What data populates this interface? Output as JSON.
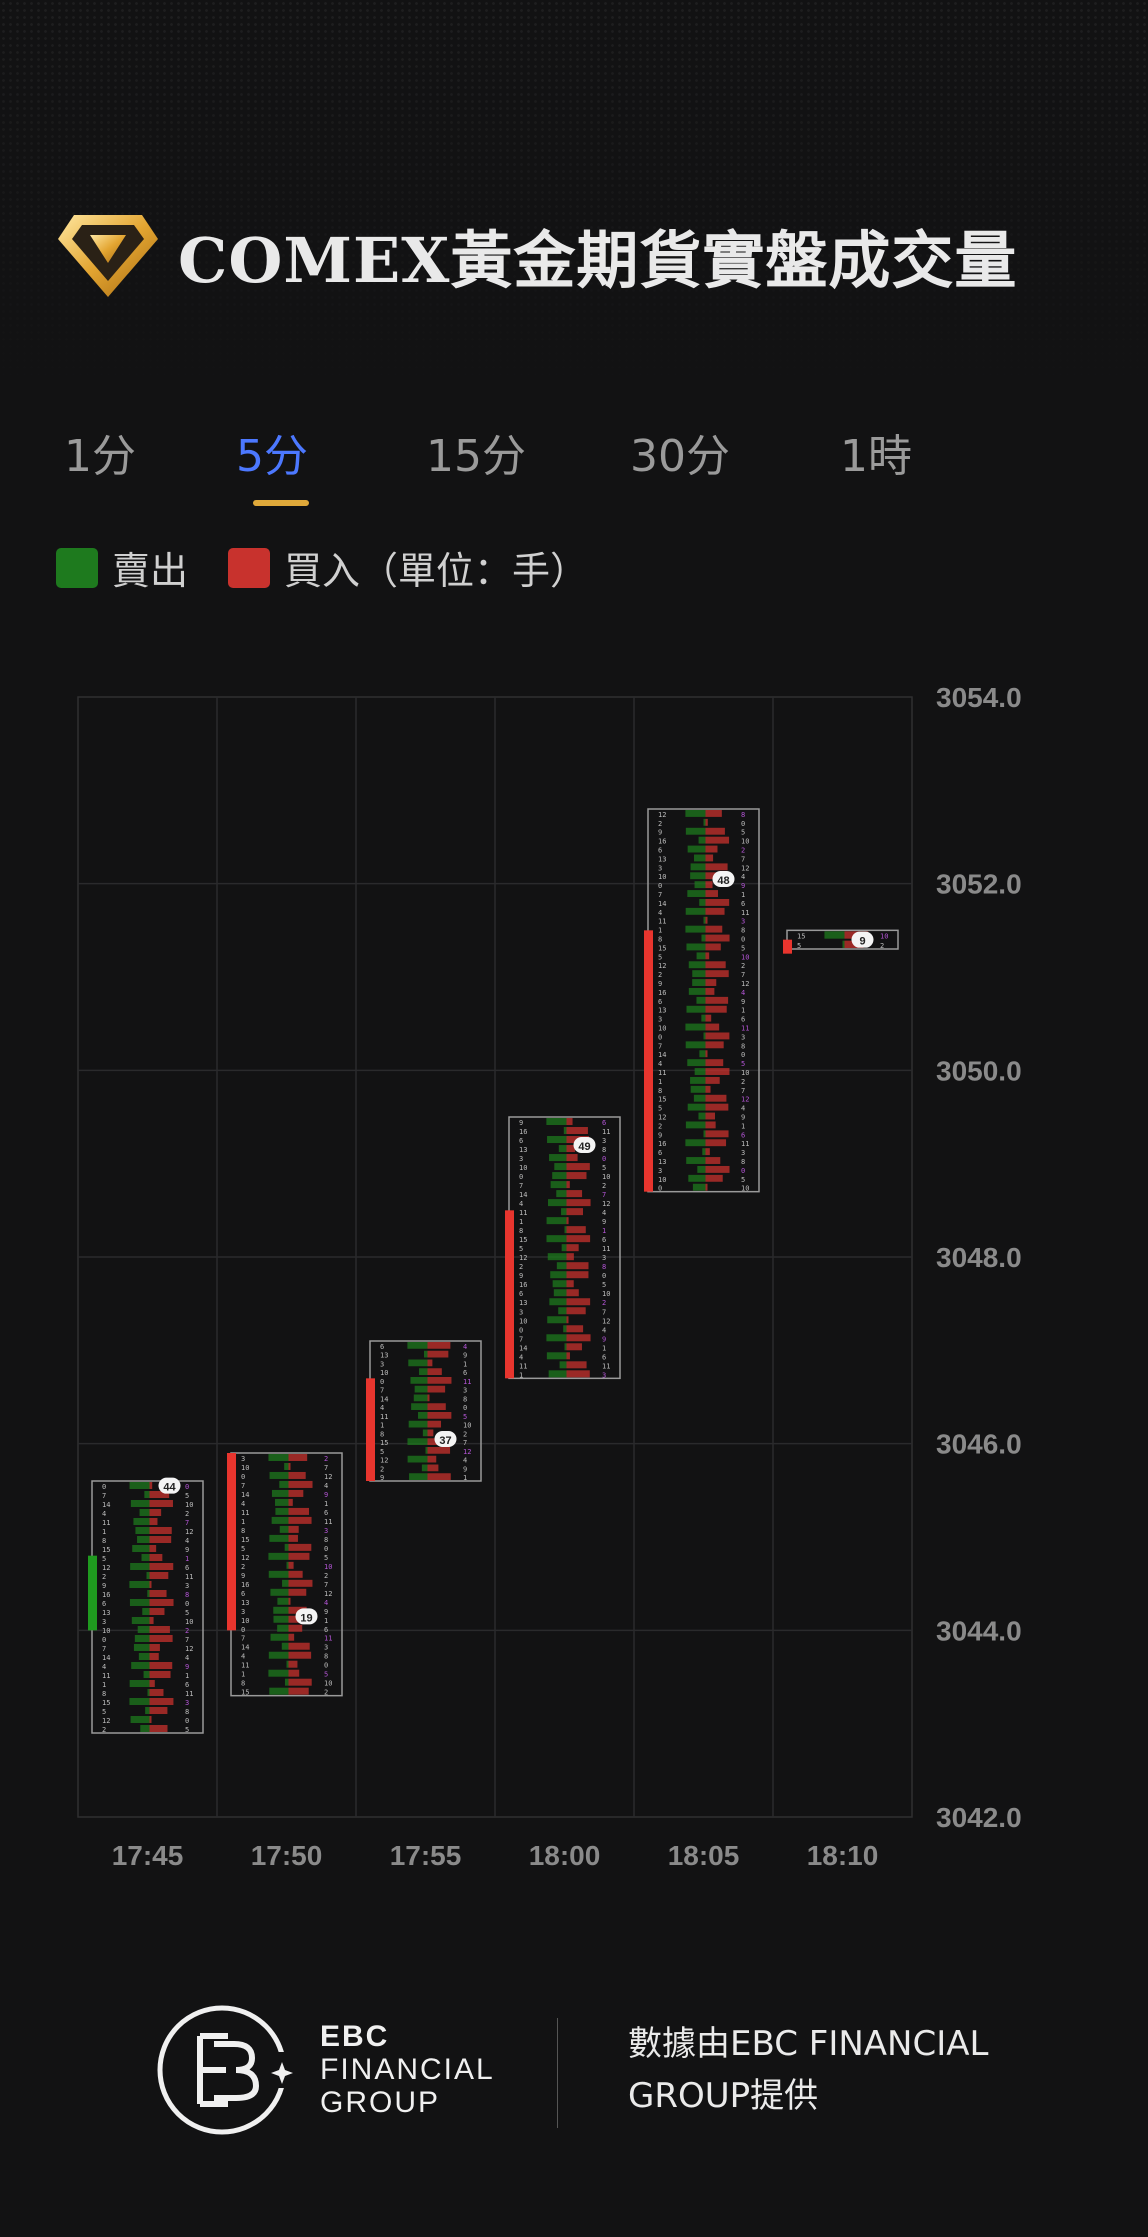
{
  "header": {
    "title": "COMEX黃金期貨實盤成交量"
  },
  "tabs": [
    {
      "label": "1分",
      "active": false
    },
    {
      "label": "5分",
      "active": true
    },
    {
      "label": "15分",
      "active": false
    },
    {
      "label": "30分",
      "active": false
    },
    {
      "label": "1時",
      "active": false
    }
  ],
  "legend": {
    "sell_label": "賣出",
    "buy_label": "買入（單位：手）",
    "sell_color": "#1e7a1e",
    "buy_color": "#c8322d"
  },
  "chart_data": {
    "type": "footprint-candlestick",
    "categories": [
      "17:45",
      "17:50",
      "17:55",
      "18:00",
      "18:05",
      "18:10"
    ],
    "y_ticks": [
      "3054.0",
      "3052.0",
      "3050.0",
      "3048.0",
      "3046.0",
      "3044.0",
      "3042.0"
    ],
    "ylim": [
      3042.0,
      3054.0
    ],
    "grid": true,
    "candles": [
      {
        "time": "17:45",
        "open": 3044.0,
        "high": 3045.6,
        "low": 3042.9,
        "close": 3044.8,
        "poc_label": "44",
        "direction": "up"
      },
      {
        "time": "17:50",
        "open": 3044.0,
        "high": 3045.9,
        "low": 3043.3,
        "close": 3045.9,
        "poc_label": "19",
        "direction": "up"
      },
      {
        "time": "17:55",
        "open": 3045.6,
        "high": 3047.1,
        "low": 3045.6,
        "close": 3046.7,
        "poc_label": "37",
        "direction": "up"
      },
      {
        "time": "18:00",
        "open": 3046.7,
        "high": 3049.5,
        "low": 3046.7,
        "close": 3048.5,
        "poc_label": "49",
        "direction": "up"
      },
      {
        "time": "18:05",
        "open": 3048.7,
        "high": 3052.8,
        "low": 3048.7,
        "close": 3051.5,
        "poc_label": "48",
        "direction": "up"
      },
      {
        "time": "18:10",
        "open": 3051.4,
        "high": 3051.5,
        "low": 3051.3,
        "close": 3051.4,
        "poc_label": "9",
        "direction": "up"
      }
    ]
  },
  "footer": {
    "brand_line1": "EBC",
    "brand_line2": "FINANCIAL",
    "brand_line3": "GROUP",
    "source_text": "數據由EBC FINANCIAL GROUP提供"
  }
}
